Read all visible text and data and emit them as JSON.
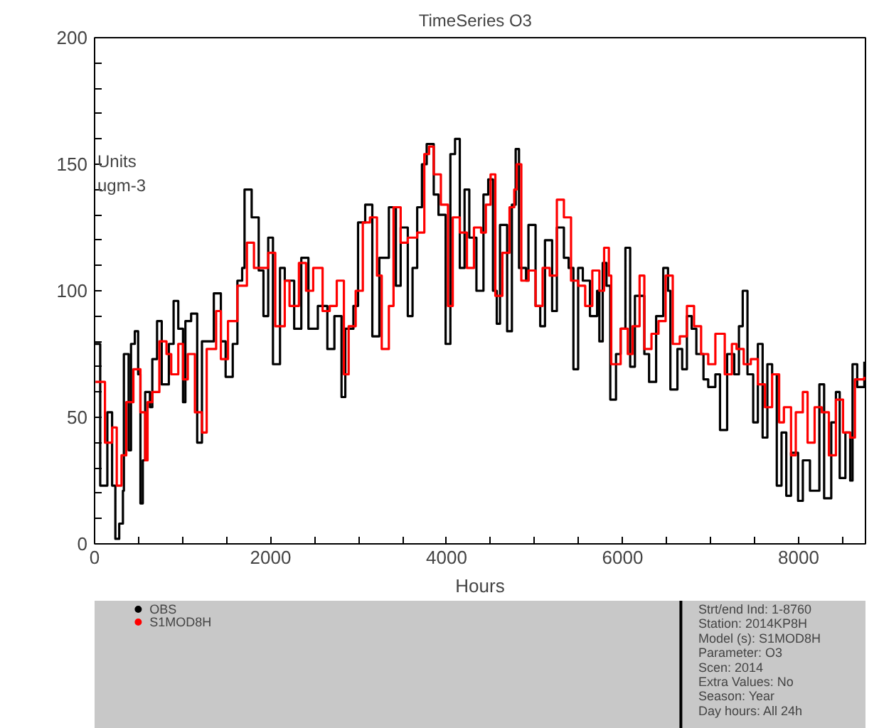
{
  "chart_data": {
    "type": "step",
    "title": "TimeSeries   O3",
    "xlabel": "Hours",
    "ylabel": "Units\nugm-3",
    "xlim": [
      0,
      8760
    ],
    "ylim": [
      0,
      200
    ],
    "xticks": [
      0,
      {
        "value": 500,
        "label": null
      },
      {
        "value": 1000,
        "label": null
      },
      {
        "value": 1500,
        "label": null
      },
      2000,
      {
        "value": 2500,
        "label": null
      },
      {
        "value": 3000,
        "label": null
      },
      {
        "value": 3500,
        "label": null
      },
      4000,
      {
        "value": 4500,
        "label": null
      },
      {
        "value": 5000,
        "label": null
      },
      {
        "value": 5500,
        "label": null
      },
      6000,
      {
        "value": 6500,
        "label": null
      },
      {
        "value": 7000,
        "label": null
      },
      {
        "value": 7500,
        "label": null
      },
      8000,
      {
        "value": 8500,
        "label": null
      }
    ],
    "yticks": [
      0,
      {
        "value": 10,
        "label": null
      },
      {
        "value": 20,
        "label": null
      },
      {
        "value": 30,
        "label": null
      },
      {
        "value": 40,
        "label": null
      },
      50,
      {
        "value": 60,
        "label": null
      },
      {
        "value": 70,
        "label": null
      },
      {
        "value": 80,
        "label": null
      },
      {
        "value": 90,
        "label": null
      },
      100,
      {
        "value": 110,
        "label": null
      },
      {
        "value": 120,
        "label": null
      },
      {
        "value": 130,
        "label": null
      },
      {
        "value": 140,
        "label": null
      },
      150,
      {
        "value": 160,
        "label": null
      },
      {
        "value": 170,
        "label": null
      },
      {
        "value": 180,
        "label": null
      },
      {
        "value": 190,
        "label": null
      },
      200
    ],
    "grid": false,
    "legend": "bottom",
    "marker": "none",
    "line_style": "solid",
    "series": [
      {
        "name": "OBS",
        "color": "#000000",
        "x": [
          0,
          64,
          145,
          199,
          236,
          280,
          322,
          333,
          387,
          414,
          457,
          495,
          521,
          548,
          575,
          629,
          656,
          710,
          763,
          844,
          898,
          951,
          1005,
          1032,
          1097,
          1166,
          1220,
          1301,
          1355,
          1435,
          1489,
          1570,
          1623,
          1677,
          1704,
          1758,
          1785,
          1865,
          1919,
          1973,
          2027,
          2107,
          2161,
          2268,
          2349,
          2430,
          2537,
          2645,
          2725,
          2806,
          2849,
          2941,
          2994,
          3075,
          3156,
          3236,
          3344,
          3424,
          3478,
          3559,
          3613,
          3666,
          3720,
          3774,
          3854,
          3908,
          3989,
          4043,
          4096,
          4150,
          4204,
          4258,
          4339,
          4419,
          4473,
          4527,
          4570,
          4607,
          4688,
          4742,
          4785,
          4823,
          4903,
          4930,
          5011,
          5064,
          5118,
          5199,
          5253,
          5333,
          5387,
          5441,
          5495,
          5548,
          5629,
          5710,
          5736,
          5774,
          5817,
          5860,
          5925,
          5978,
          6032,
          6086,
          6140,
          6247,
          6301,
          6381,
          6462,
          6516,
          6543,
          6623,
          6677,
          6731,
          6785,
          6838,
          6919,
          6973,
          7054,
          7107,
          7188,
          7269,
          7322,
          7365,
          7419,
          7484,
          7537,
          7591,
          7645,
          7699,
          7752,
          7806,
          7860,
          7914,
          7994,
          8048,
          8129,
          8236,
          8290,
          8371,
          8424,
          8467,
          8532,
          8586,
          8613,
          8666,
          8747
        ],
        "values": [
          79,
          23,
          52,
          23,
          2,
          8,
          21,
          75,
          37,
          79,
          84,
          67,
          16,
          33,
          60,
          54,
          73,
          88,
          63,
          79,
          96,
          85,
          56,
          88,
          91,
          40,
          80,
          80,
          99,
          80,
          66,
          79,
          104,
          109,
          140,
          140,
          129,
          108,
          90,
          121,
          71,
          109,
          104,
          85,
          113,
          85,
          94,
          77,
          90,
          58,
          85,
          94,
          127,
          134,
          82,
          113,
          133,
          102,
          125,
          90,
          109,
          133,
          150,
          158,
          138,
          130,
          79,
          154,
          160,
          109,
          140,
          121,
          100,
          138,
          144,
          100,
          87,
          126,
          84,
          134,
          156,
          109,
          104,
          126,
          94,
          86,
          120,
          92,
          125,
          113,
          109,
          69,
          109,
          104,
          90,
          100,
          80,
          111,
          102,
          57,
          75,
          85,
          117,
          70,
          98,
          75,
          64,
          90,
          109,
          100,
          61,
          77,
          69,
          90,
          85,
          75,
          65,
          62,
          67,
          45,
          75,
          67,
          86,
          100,
          67,
          48,
          79,
          42,
          71,
          67,
          23,
          44,
          19,
          36,
          17,
          33,
          21,
          63,
          18,
          48,
          60,
          26,
          44,
          25,
          71,
          62,
          72
        ]
      },
      {
        "name": "S1MOD8H",
        "color": "#ff0000",
        "x": [
          10,
          118,
          199,
          252,
          306,
          360,
          441,
          521,
          575,
          602,
          656,
          736,
          817,
          871,
          951,
          1005,
          1059,
          1140,
          1220,
          1274,
          1381,
          1435,
          1516,
          1623,
          1731,
          1811,
          1892,
          1973,
          2053,
          2161,
          2215,
          2322,
          2403,
          2484,
          2591,
          2672,
          2752,
          2833,
          2887,
          2967,
          3048,
          3129,
          3209,
          3263,
          3344,
          3397,
          3478,
          3559,
          3666,
          3747,
          3801,
          3854,
          3935,
          4016,
          4070,
          4150,
          4231,
          4311,
          4392,
          4446,
          4500,
          4554,
          4634,
          4715,
          4769,
          4796,
          4849,
          4930,
          5011,
          5091,
          5172,
          5253,
          5333,
          5414,
          5495,
          5575,
          5656,
          5736,
          5790,
          5844,
          5871,
          5978,
          6059,
          6113,
          6193,
          6247,
          6328,
          6408,
          6489,
          6570,
          6650,
          6731,
          6812,
          6892,
          6973,
          7054,
          7161,
          7242,
          7295,
          7376,
          7457,
          7537,
          7618,
          7699,
          7779,
          7833,
          7914,
          7968,
          8048,
          8102,
          8182,
          8263,
          8344,
          8424,
          8505,
          8586,
          8640,
          8747
        ],
        "values": [
          64,
          40,
          46,
          23,
          35,
          56,
          69,
          52,
          33,
          56,
          60,
          80,
          75,
          67,
          79,
          65,
          75,
          52,
          44,
          77,
          92,
          73,
          88,
          102,
          119,
          109,
          109,
          115,
          86,
          104,
          94,
          111,
          100,
          109,
          92,
          94,
          104,
          67,
          86,
          100,
          127,
          129,
          106,
          77,
          94,
          133,
          119,
          121,
          123,
          154,
          157,
          146,
          134,
          94,
          129,
          123,
          109,
          125,
          123,
          134,
          146,
          98,
          115,
          133,
          140,
          150,
          104,
          108,
          94,
          109,
          106,
          136,
          129,
          104,
          102,
          94,
          108,
          100,
          117,
          106,
          71,
          85,
          75,
          86,
          106,
          77,
          83,
          88,
          106,
          79,
          82,
          94,
          86,
          75,
          71,
          83,
          67,
          79,
          77,
          71,
          73,
          63,
          54,
          67,
          48,
          54,
          35,
          52,
          60,
          40,
          54,
          52,
          35,
          57,
          44,
          42,
          65,
          66
        ]
      }
    ],
    "annotations": [
      "Strt/end Ind: 1-8760",
      "Station: 2014KP8H",
      "Model (s): S1MOD8H",
      "Parameter: O3",
      "Scen: 2014",
      "Extra Values: No",
      "Season: Year",
      "Day hours: All 24h"
    ]
  }
}
